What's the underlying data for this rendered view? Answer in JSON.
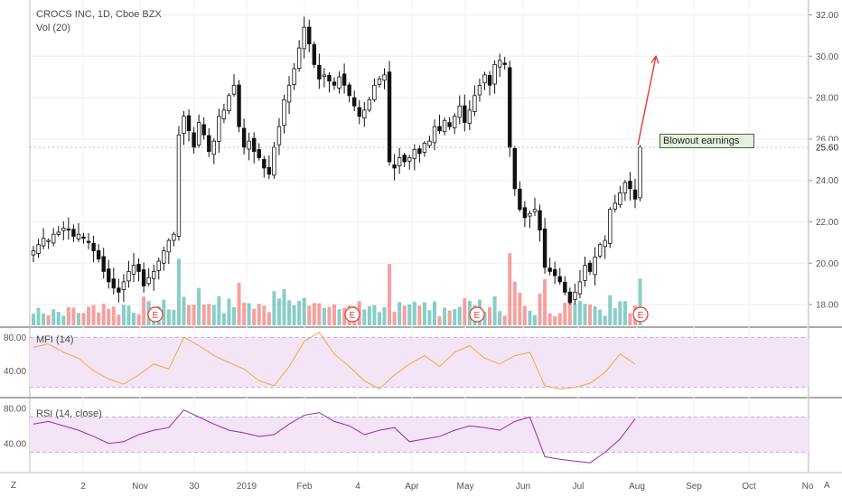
{
  "header": {
    "title": "CROCS INC, 1D, Cboe BZX",
    "volume_label": "Vol (20)"
  },
  "annotation": {
    "text": "Blowout earnings"
  },
  "corner_labels": {
    "left": "Z",
    "right": "A"
  },
  "colors": {
    "up": "#26a69a",
    "down": "#ef5350",
    "candle": "#111111",
    "mfi": "#f2a93b",
    "rsi": "#9c27b0",
    "band": "#f3e5f5",
    "arrow": "#e53935",
    "earnings": "#e53935"
  },
  "earnings_marker": "E",
  "chart_data": [
    {
      "type": "candlestick",
      "title": "CROCS INC, 1D, Cboe BZX",
      "y_ticks": [
        "32.00",
        "30.00",
        "28.00",
        "26.00",
        "24.00",
        "22.00",
        "20.00",
        "18.00"
      ],
      "ylim": [
        17.0,
        32.5
      ],
      "last_price": "25.60",
      "x_ticks": [
        "2",
        "Nov",
        "30",
        "2019",
        "Feb",
        "4",
        "Apr",
        "May",
        "Jun",
        "Jul",
        "Aug",
        "Sep",
        "Oct",
        "No"
      ],
      "series": [
        {
          "name": "Close",
          "closes": [
            20.6,
            20.9,
            21.2,
            21.1,
            21.4,
            21.5,
            21.7,
            21.6,
            21.3,
            21.4,
            21.2,
            21.0,
            20.6,
            20.2,
            19.6,
            19.1,
            18.8,
            18.6,
            19.1,
            19.6,
            19.9,
            19.6,
            18.9,
            19.3,
            19.6,
            20.1,
            20.6,
            21.1,
            21.4,
            26.2,
            27.1,
            26.4,
            25.6,
            26.8,
            26.2,
            25.4,
            25.9,
            27.1,
            27.4,
            28.1,
            28.6,
            26.6,
            25.6,
            25.9,
            25.4,
            25.1,
            24.6,
            24.3,
            25.6,
            26.6,
            27.9,
            28.6,
            29.4,
            30.4,
            31.4,
            30.6,
            29.6,
            28.9,
            29.1,
            28.8,
            28.6,
            29.0,
            28.6,
            28.1,
            27.6,
            27.1,
            27.4,
            27.9,
            28.6,
            28.9,
            29.1,
            24.9,
            24.6,
            25.1,
            24.9,
            25.1,
            25.5,
            25.3,
            25.8,
            25.9,
            26.6,
            26.4,
            26.9,
            26.6,
            27.1,
            27.6,
            26.8,
            27.4,
            28.1,
            28.6,
            29.1,
            28.6,
            29.6,
            29.8,
            29.6,
            25.6,
            23.6,
            22.6,
            22.2,
            22.4,
            22.6,
            21.6,
            19.8,
            19.6,
            19.4,
            19.1,
            18.6,
            18.1,
            18.6,
            19.1,
            19.9,
            19.6,
            20.3,
            20.9,
            21.1,
            22.6,
            22.9,
            23.4,
            23.9,
            23.6,
            23.1,
            25.6
          ]
        }
      ]
    },
    {
      "type": "line",
      "title": "MFI (14)",
      "y_ticks": [
        "80.00",
        "40.00"
      ],
      "ylim": [
        10,
        90
      ],
      "x": [
        0,
        3,
        6,
        9,
        12,
        15,
        18,
        21,
        24,
        27,
        30,
        33,
        36,
        39,
        42,
        45,
        48,
        51,
        54,
        57,
        60,
        63,
        66,
        69,
        72,
        75,
        78,
        81,
        84,
        87,
        90,
        93,
        96,
        99,
        102,
        105,
        108,
        111,
        114,
        117,
        120
      ],
      "series": [
        {
          "name": "MFI",
          "values": [
            68,
            72,
            62,
            55,
            40,
            30,
            24,
            35,
            48,
            42,
            80,
            70,
            58,
            50,
            42,
            28,
            22,
            45,
            75,
            86,
            60,
            45,
            28,
            18,
            35,
            48,
            58,
            45,
            62,
            70,
            55,
            48,
            58,
            62,
            22,
            18,
            20,
            25,
            38,
            60,
            48
          ]
        }
      ],
      "band": [
        20,
        80
      ]
    },
    {
      "type": "line",
      "title": "RSI (14, close)",
      "y_ticks": [
        "80.00",
        "40.00"
      ],
      "ylim": [
        10,
        90
      ],
      "x": [
        0,
        3,
        6,
        9,
        12,
        15,
        18,
        21,
        24,
        27,
        30,
        33,
        36,
        39,
        42,
        45,
        48,
        51,
        54,
        57,
        60,
        63,
        66,
        69,
        72,
        75,
        78,
        81,
        84,
        87,
        90,
        93,
        96,
        99,
        102,
        105,
        108,
        111,
        114,
        117,
        120
      ],
      "series": [
        {
          "name": "RSI",
          "values": [
            62,
            65,
            60,
            55,
            48,
            40,
            42,
            50,
            55,
            58,
            78,
            70,
            62,
            55,
            52,
            48,
            50,
            62,
            72,
            75,
            65,
            60,
            50,
            55,
            58,
            42,
            45,
            48,
            55,
            60,
            58,
            55,
            65,
            70,
            25,
            22,
            20,
            18,
            30,
            45,
            68
          ]
        }
      ],
      "band": [
        30,
        70
      ]
    }
  ]
}
